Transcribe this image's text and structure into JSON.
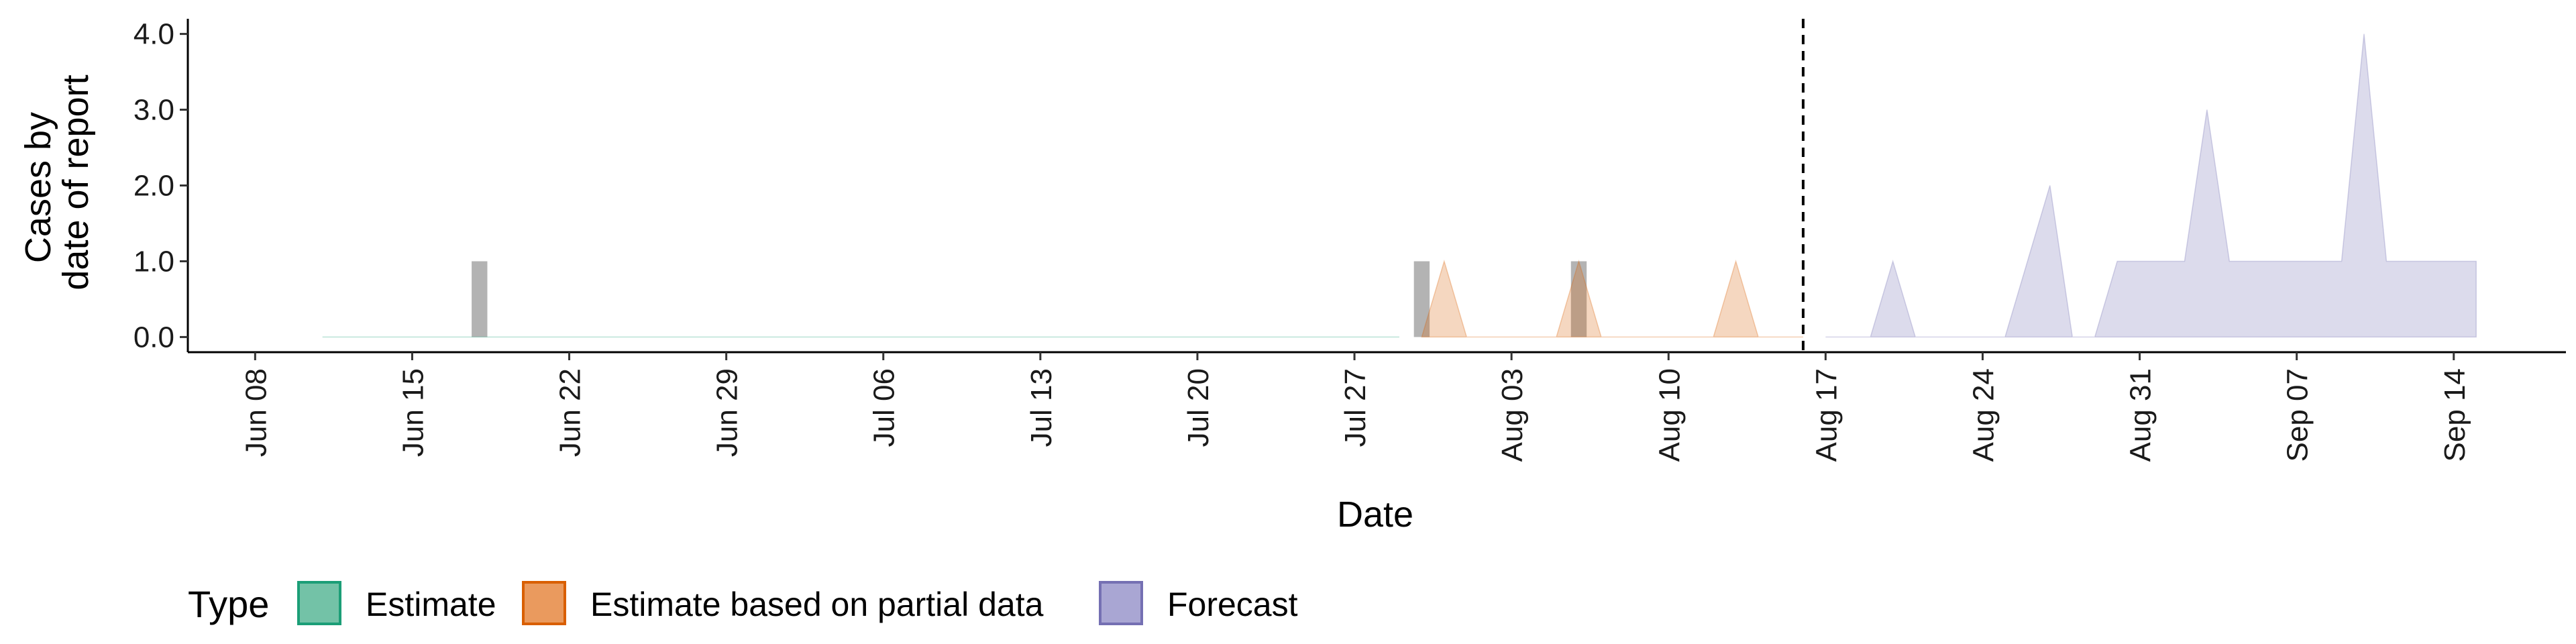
{
  "chart_data": {
    "type": "area",
    "title": "",
    "xlabel": "Date",
    "ylabel_lines": [
      "Cases by",
      "date of report"
    ],
    "x_start": "2020-06-05",
    "x_end": "2020-09-19",
    "ylim": [
      -0.2,
      4.2
    ],
    "y_ticks": [
      {
        "value": 0,
        "label": "0.0"
      },
      {
        "value": 1,
        "label": "1.0"
      },
      {
        "value": 2,
        "label": "2.0"
      },
      {
        "value": 3,
        "label": "3.0"
      },
      {
        "value": 4,
        "label": "4.0"
      }
    ],
    "x_ticks": [
      {
        "date": "2020-06-08",
        "label": "Jun 08"
      },
      {
        "date": "2020-06-15",
        "label": "Jun 15"
      },
      {
        "date": "2020-06-22",
        "label": "Jun 22"
      },
      {
        "date": "2020-06-29",
        "label": "Jun 29"
      },
      {
        "date": "2020-07-06",
        "label": "Jul 06"
      },
      {
        "date": "2020-07-13",
        "label": "Jul 13"
      },
      {
        "date": "2020-07-20",
        "label": "Jul 20"
      },
      {
        "date": "2020-07-27",
        "label": "Jul 27"
      },
      {
        "date": "2020-08-03",
        "label": "Aug 03"
      },
      {
        "date": "2020-08-10",
        "label": "Aug 10"
      },
      {
        "date": "2020-08-17",
        "label": "Aug 17"
      },
      {
        "date": "2020-08-24",
        "label": "Aug 24"
      },
      {
        "date": "2020-08-31",
        "label": "Aug 31"
      },
      {
        "date": "2020-09-07",
        "label": "Sep 07"
      },
      {
        "date": "2020-09-14",
        "label": "Sep 14"
      }
    ],
    "forecast_start": "2020-08-16",
    "observed_cases": [
      {
        "date": "2020-06-18",
        "value": 1
      },
      {
        "date": "2020-07-30",
        "value": 1
      },
      {
        "date": "2020-08-06",
        "value": 1
      }
    ],
    "series": [
      {
        "name": "Estimate",
        "color": "#1b9e77",
        "points": [
          {
            "date": "2020-06-11",
            "value": 0
          },
          {
            "date": "2020-07-29",
            "value": 0
          }
        ]
      },
      {
        "name": "Estimate based on partial data",
        "color": "#d95f02",
        "points": [
          {
            "date": "2020-07-30",
            "value": 0
          },
          {
            "date": "2020-07-31",
            "value": 1
          },
          {
            "date": "2020-08-01",
            "value": 0
          },
          {
            "date": "2020-08-05",
            "value": 0
          },
          {
            "date": "2020-08-06",
            "value": 1
          },
          {
            "date": "2020-08-07",
            "value": 0
          },
          {
            "date": "2020-08-12",
            "value": 0
          },
          {
            "date": "2020-08-13",
            "value": 1
          },
          {
            "date": "2020-08-14",
            "value": 0
          },
          {
            "date": "2020-08-16",
            "value": 0
          }
        ]
      },
      {
        "name": "Forecast",
        "color": "#7570b3",
        "points": [
          {
            "date": "2020-08-17",
            "value": 0
          },
          {
            "date": "2020-08-19",
            "value": 0
          },
          {
            "date": "2020-08-20",
            "value": 1
          },
          {
            "date": "2020-08-21",
            "value": 0
          },
          {
            "date": "2020-08-25",
            "value": 0
          },
          {
            "date": "2020-08-27",
            "value": 2
          },
          {
            "date": "2020-08-28",
            "value": 0
          },
          {
            "date": "2020-08-29",
            "value": 0
          },
          {
            "date": "2020-08-30",
            "value": 1
          },
          {
            "date": "2020-09-02",
            "value": 1
          },
          {
            "date": "2020-09-03",
            "value": 3
          },
          {
            "date": "2020-09-04",
            "value": 1
          },
          {
            "date": "2020-09-09",
            "value": 1
          },
          {
            "date": "2020-09-10",
            "value": 4
          },
          {
            "date": "2020-09-11",
            "value": 1
          },
          {
            "date": "2020-09-15",
            "value": 1
          }
        ]
      }
    ],
    "legend": {
      "title": "Type",
      "position": "bottom-left",
      "items": [
        {
          "label": "Estimate",
          "fill": "#73c2a7",
          "stroke": "#1b9e77"
        },
        {
          "label": "Estimate based on partial data",
          "fill": "#ea9a5e",
          "stroke": "#d95f02"
        },
        {
          "label": "Forecast",
          "fill": "#a9a6d3",
          "stroke": "#7570b3"
        }
      ]
    }
  }
}
